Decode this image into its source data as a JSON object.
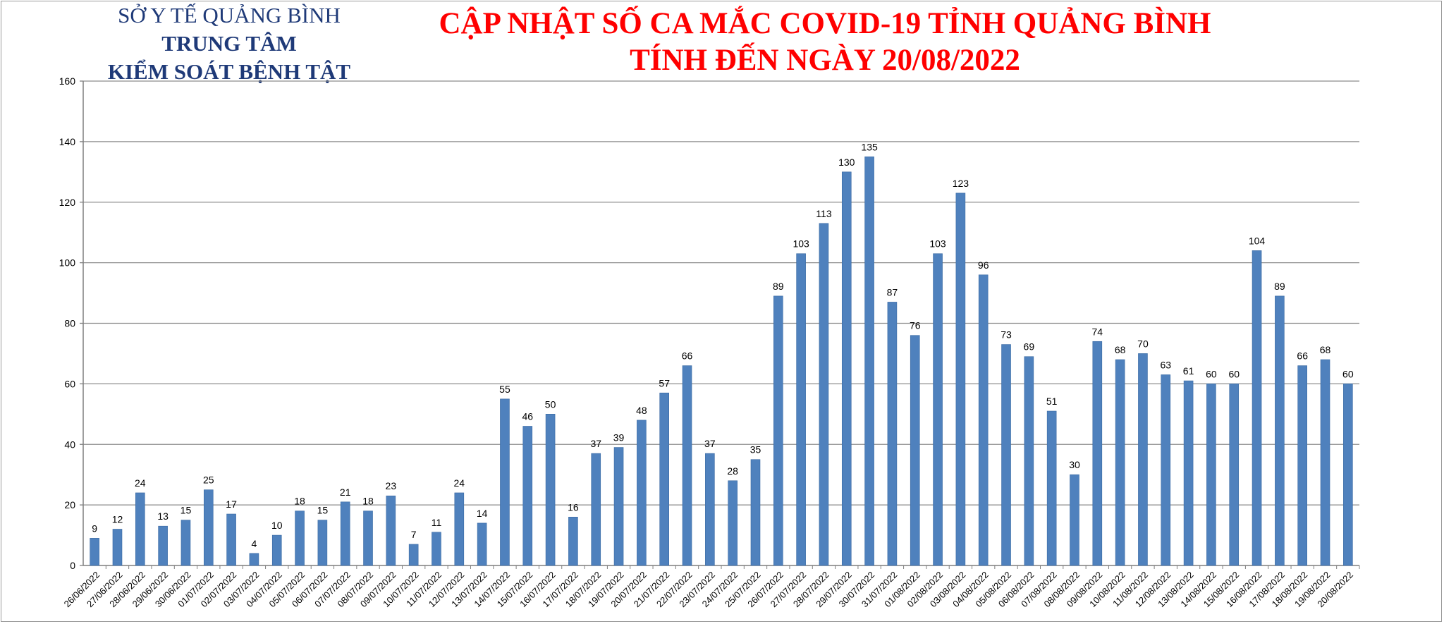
{
  "header": {
    "org_line1": "SỞ Y TẾ QUẢNG BÌNH",
    "org_line2": "TRUNG TÂM",
    "org_line3": "KIỂM SOÁT BỆNH TẬT",
    "title_line1": "CẬP NHẬT SỐ CA MẮC COVID-19 TỈNH QUẢNG BÌNH",
    "title_line2": "TÍNH ĐẾN NGÀY 20/08/2022"
  },
  "colors": {
    "bar": "#4f81bd",
    "bar_edge": "#3a6aa3",
    "grid": "#8c8c8c",
    "axis": "#7f7f7f",
    "text": "#000000",
    "title": "#ff0000",
    "org": "#1f3a78"
  },
  "chart_data": {
    "type": "bar",
    "title": "CẬP NHẬT SỐ CA MẮC COVID-19 TỈNH QUẢNG BÌNH TÍNH ĐẾN NGÀY 20/08/2022",
    "xlabel": "",
    "ylabel": "",
    "ylim": [
      0,
      160
    ],
    "yticks": [
      0,
      20,
      40,
      60,
      80,
      100,
      120,
      140,
      160
    ],
    "grid": true,
    "legend": "none",
    "data_labels": true,
    "categories": [
      "26/06/2022",
      "27/06/2022",
      "28/06/2022",
      "29/06/2022",
      "30/06/2022",
      "01/07/2022",
      "02/07/2022",
      "03/07/2022",
      "04/07/2022",
      "05/07/2022",
      "06/07/2022",
      "07/07/2022",
      "08/07/2022",
      "09/07/2022",
      "10/07/2022",
      "11/07/2022",
      "12/07/2022",
      "13/07/2022",
      "14/07/2022",
      "15/07/2022",
      "16/07/2022",
      "17/07/2022",
      "18/07/2022",
      "19/07/2022",
      "20/07/2022",
      "21/07/2022",
      "22/07/2022",
      "23/07/2022",
      "24/07/2022",
      "25/07/2022",
      "26/07/2022",
      "27/07/2022",
      "28/07/2022",
      "29/07/2022",
      "30/07/2022",
      "31/07/2022",
      "01/08/2022",
      "02/08/2022",
      "03/08/2022",
      "04/08/2022",
      "05/08/2022",
      "06/08/2022",
      "07/08/2022",
      "08/08/2022",
      "09/08/2022",
      "10/08/2022",
      "11/08/2022",
      "12/08/2022",
      "13/08/2022",
      "14/08/2022",
      "15/08/2022",
      "16/08/2022",
      "17/08/2022",
      "18/08/2022",
      "19/08/2022",
      "20/08/2022"
    ],
    "values": [
      9,
      12,
      24,
      13,
      15,
      25,
      17,
      4,
      10,
      18,
      15,
      21,
      18,
      23,
      7,
      11,
      24,
      14,
      55,
      46,
      50,
      16,
      37,
      39,
      48,
      57,
      66,
      37,
      28,
      35,
      89,
      103,
      113,
      130,
      135,
      87,
      76,
      103,
      123,
      96,
      73,
      69,
      51,
      30,
      74,
      68,
      70,
      63,
      61,
      60,
      60,
      104,
      89,
      66,
      68,
      60
    ]
  }
}
